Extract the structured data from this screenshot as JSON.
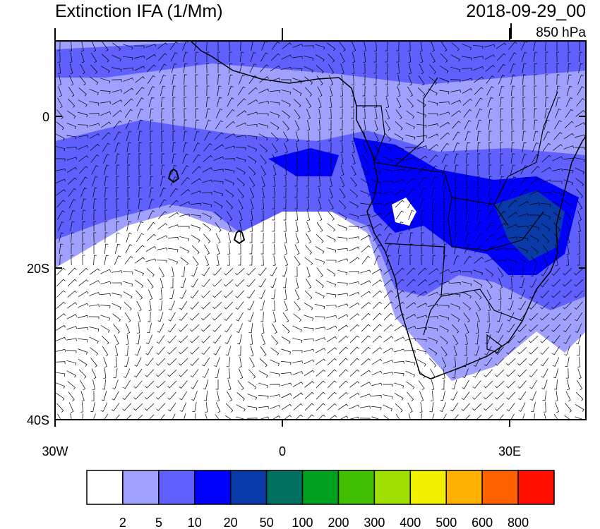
{
  "map": {
    "title": "Extinction IFA (1/Mm)",
    "valid_time": "2018-09-29_00",
    "level": "850 hPa",
    "lat_labels": [
      "0",
      "20S",
      "40S"
    ],
    "lon_labels": [
      "30W",
      "0",
      "30E"
    ],
    "colorbar": {
      "labels": [
        "2",
        "5",
        "10",
        "20",
        "50",
        "100",
        "200",
        "300",
        "400",
        "500",
        "600",
        "800"
      ],
      "colors": [
        "#ffffff",
        "#a0a0ff",
        "#6060ff",
        "#0000ff",
        "#0a3aa8",
        "#007060",
        "#00a020",
        "#40c000",
        "#a0e000",
        "#f0f000",
        "#ffb000",
        "#ff6000",
        "#ff1000"
      ]
    }
  }
}
